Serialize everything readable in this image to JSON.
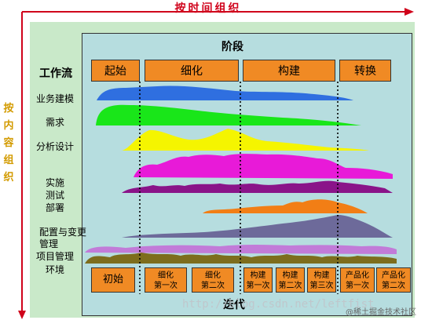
{
  "labels": {
    "time_axis": "按时间组织",
    "content_axis": [
      "按",
      "内",
      "容",
      "组",
      "织"
    ],
    "phases_title": "阶段",
    "workflow_title": "工作流",
    "iterations_title": "迭代"
  },
  "phases": [
    "起始",
    "细化",
    "构建",
    "转换"
  ],
  "workflows": [
    {
      "label": "业务建模",
      "color": "#2f6fe0"
    },
    {
      "label": "需求",
      "color": "#19e619"
    },
    {
      "label": "分析设计",
      "color": "#f5f500"
    },
    {
      "label": "实施",
      "color": "#e81ad8"
    },
    {
      "label": "测试",
      "color": "#8a1489"
    },
    {
      "label": "部署",
      "color": "#f27e15"
    },
    {
      "label": "配置与变更管理",
      "color": "#6d6a9a"
    },
    {
      "label": "项目管理",
      "color": "#c27bd8"
    },
    {
      "label": "环境",
      "color": "#7d6d1d"
    }
  ],
  "iterations": [
    {
      "line1": "初始",
      "line2": ""
    },
    {
      "line1": "细化",
      "line2": "第一次"
    },
    {
      "line1": "细化",
      "line2": "第二次"
    },
    {
      "line1": "构建",
      "line2": "第一次"
    },
    {
      "line1": "构建",
      "line2": "第二次"
    },
    {
      "line1": "构建",
      "line2": "第三次"
    },
    {
      "line1": "产品化",
      "line2": "第一次"
    },
    {
      "line1": "产品化",
      "line2": "第二次"
    }
  ],
  "watermark": {
    "url": "http://blog.csdn.net/leftfist",
    "community": "@稀土掘金技术社区"
  }
}
